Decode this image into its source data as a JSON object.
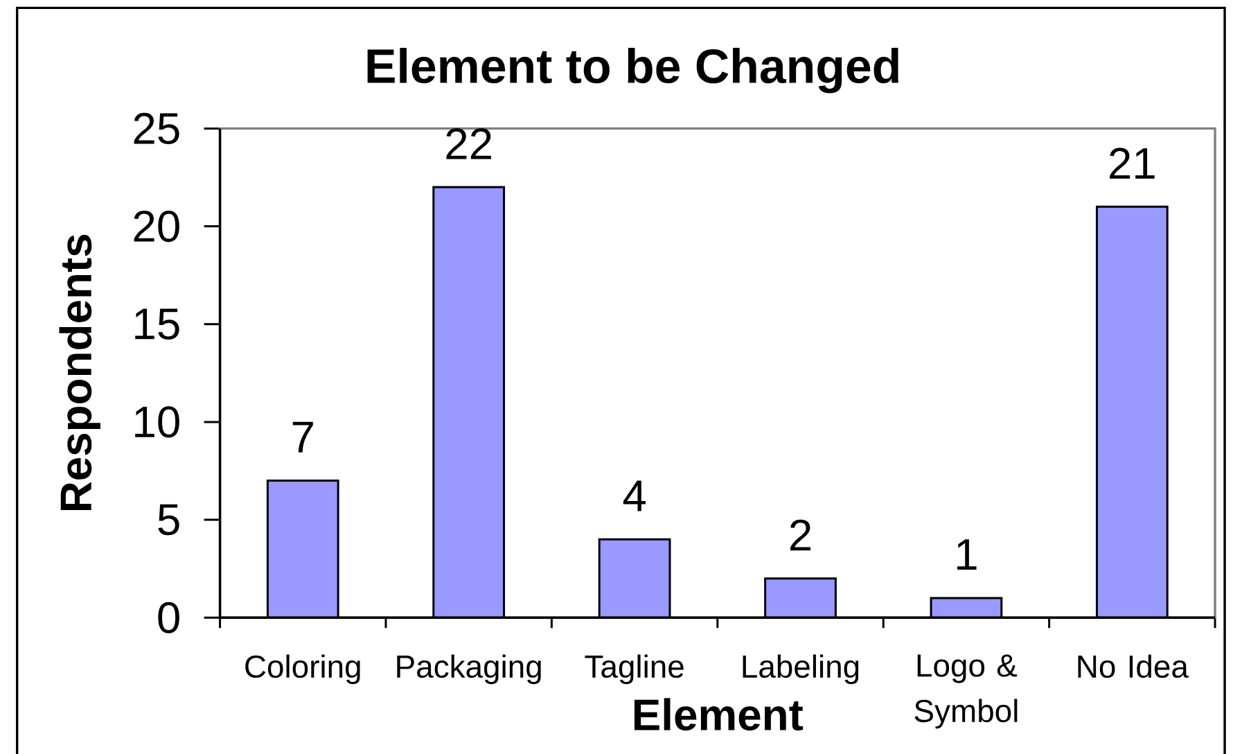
{
  "chart_data": {
    "type": "bar",
    "title": "Element to be Changed",
    "xlabel": "Element",
    "ylabel": "Respondents",
    "categories": [
      "Coloring",
      "Packaging",
      "Tagline",
      "Labeling",
      "Logo & Symbol",
      "No Idea"
    ],
    "values": [
      7,
      22,
      4,
      2,
      1,
      21
    ],
    "color": "#9999ff",
    "ylim": [
      0,
      25
    ],
    "yticks": [
      0,
      5,
      10,
      15,
      20,
      25
    ],
    "data_labels": true
  }
}
